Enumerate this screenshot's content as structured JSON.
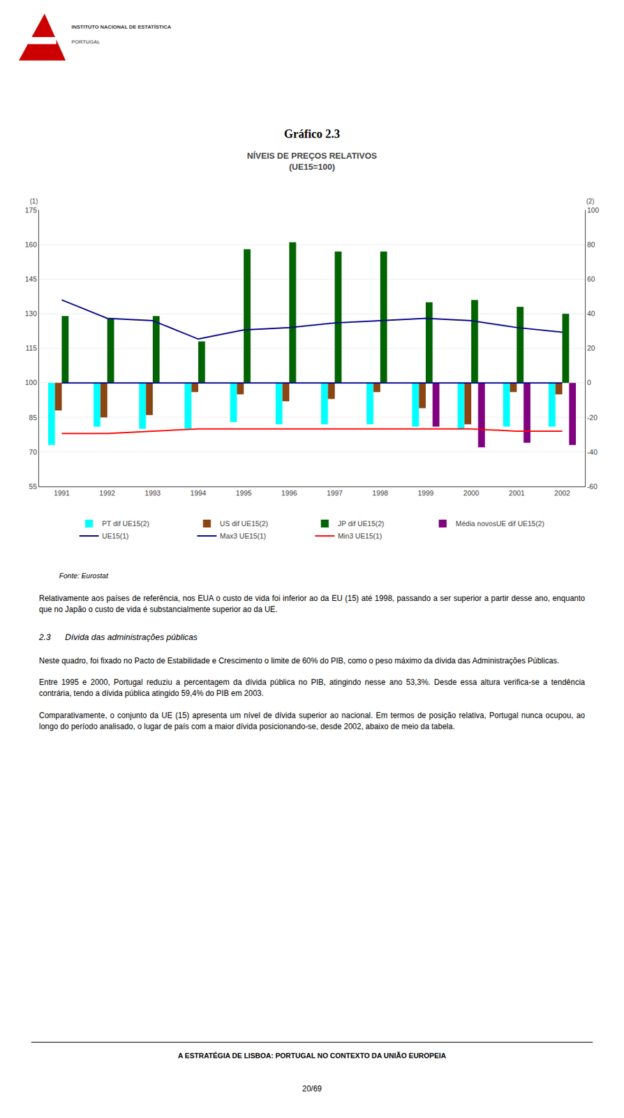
{
  "chart_data": {
    "type": "bar",
    "title": "Gráfico 2.3",
    "subtitle": "NÍVEIS DE PREÇOS RELATIVOS\n(UE15=100)",
    "categories": [
      "1991",
      "1992",
      "1993",
      "1994",
      "1995",
      "1996",
      "1997",
      "1998",
      "1999",
      "2000",
      "2001",
      "2002"
    ],
    "series": [
      {
        "name": "PT dif UE15(2)",
        "type": "bar",
        "color": "#00FFFF",
        "values": [
          73,
          81,
          80,
          80,
          83,
          82,
          82,
          82,
          81,
          80,
          81,
          81
        ]
      },
      {
        "name": "US dif UE15(2)",
        "type": "bar",
        "color": "#8B4513",
        "values": [
          88,
          85,
          86,
          96,
          95,
          92,
          93,
          96,
          89,
          82,
          96,
          95
        ]
      },
      {
        "name": "JP dif UE15(2)",
        "type": "bar",
        "color": "#006400",
        "values": [
          129,
          128,
          129,
          118,
          158,
          161,
          157,
          157,
          135,
          136,
          133,
          130
        ]
      },
      {
        "name": "Média novosUE dif UE15(2)",
        "type": "bar",
        "color": "#800080",
        "values": [
          100,
          100,
          100,
          100,
          100,
          100,
          100,
          100,
          81,
          72,
          74,
          73
        ]
      },
      {
        "name": "UE15(1)",
        "type": "line",
        "line_style": "solid",
        "color": "#00008B",
        "values": [
          100,
          100,
          100,
          100,
          100,
          100,
          100,
          100,
          100,
          100,
          100,
          100
        ]
      },
      {
        "name": "Max3 UE15(1)",
        "type": "line",
        "line_style": "solid",
        "color": "#00008B",
        "values": [
          136,
          128,
          127,
          119,
          123,
          124,
          126,
          127,
          128,
          127,
          124,
          122
        ]
      },
      {
        "name": "Min3 UE15(1)",
        "type": "line",
        "line_style": "solid",
        "color": "#FF0000",
        "values": [
          78,
          78,
          79,
          80,
          80,
          80,
          80,
          80,
          80,
          80,
          79,
          79
        ]
      }
    ],
    "ylim": [
      55,
      175
    ],
    "yticks": [
      55,
      70,
      85,
      100,
      115,
      130,
      145,
      160,
      175
    ],
    "y2lim": [
      -60,
      100
    ],
    "y2ticks": [
      -60,
      -40,
      -20,
      0,
      20,
      40,
      60,
      80,
      100
    ],
    "grid": true,
    "legend": "bottom",
    "annotations": [
      "(1)",
      "(2)",
      "Fonte: Eurostat",
      "Relativamente aos países de referência, nos EUA o custo de vida foi inferior ao da EU (15) até 1998, passando a ser superior a partir desse ano, enquanto que no Japão o custo de vida é substancialmente superior ao da UE.",
      "2.3",
      "Dívida das administrações públicas",
      "Neste quadro, foi fixado no Pacto de Estabilidade e Crescimento o limite de 60% do PIB, como o peso máximo da dívida das Administrações Públicas.",
      "Entre 1995 e 2000, Portugal reduziu a percentagem da dívida pública no PIB, atingindo nesse ano 53,3%. Desde essa altura verifica-se a tendência contrária, tendo a dívida pública atingido 59,4% do PIB em 2003.",
      "Comparativamente, o conjunto da UE (15) apresenta um nível de dívida superior ao nacional. Em termos de posição relativa, Portugal nunca ocupou, ao longo do período analisado, o lugar de país com a maior dívida posicionando-se, desde 2002, abaixo de meio da tabela.",
      "A ESTRATÉGIA DE LISBOA: PORTUGAL NO CONTEXTO DA UNIÃO EUROPEIA",
      "20/69",
      "INSTITUTO NACIONAL DE ESTATÍSTICA",
      "PORTUGAL"
    ]
  }
}
